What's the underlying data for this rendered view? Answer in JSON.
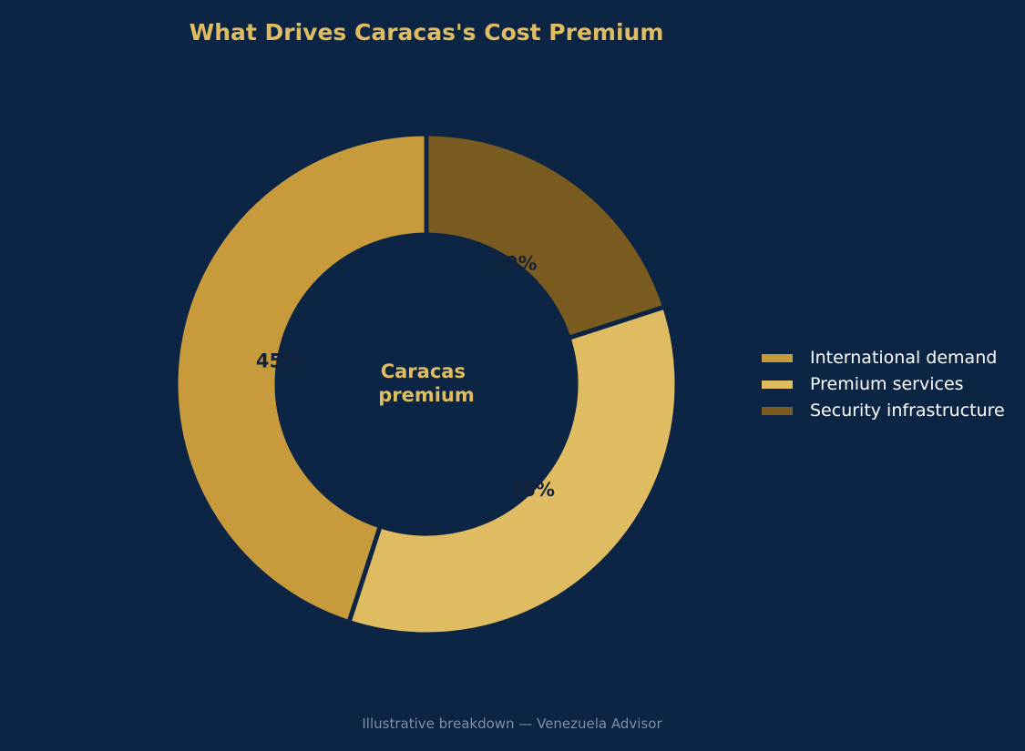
{
  "chart_data": {
    "type": "pie",
    "variant": "donut",
    "title": "What Drives Caracas's Cost Premium",
    "center_label": [
      "Caracas",
      "premium"
    ],
    "footer": "Illustrative breakdown — Venezuela Advisor",
    "categories": [
      "International demand",
      "Premium services",
      "Security infrastructure"
    ],
    "values": [
      45,
      35,
      20
    ],
    "value_labels": [
      "45%",
      "35%",
      "20%"
    ],
    "colors": [
      "#c79a3c",
      "#dfbc61",
      "#7a5b20"
    ],
    "legend_position": "right",
    "start_angle_deg": 90,
    "direction": "counterclockwise"
  },
  "theme": {
    "background": "#0c2544",
    "title_color": "#dfbc61",
    "center_label_color": "#dfbc61",
    "pct_label_color": "#13223a",
    "legend_text_color": "#ffffff",
    "footer_color": "#7f8fa8"
  }
}
